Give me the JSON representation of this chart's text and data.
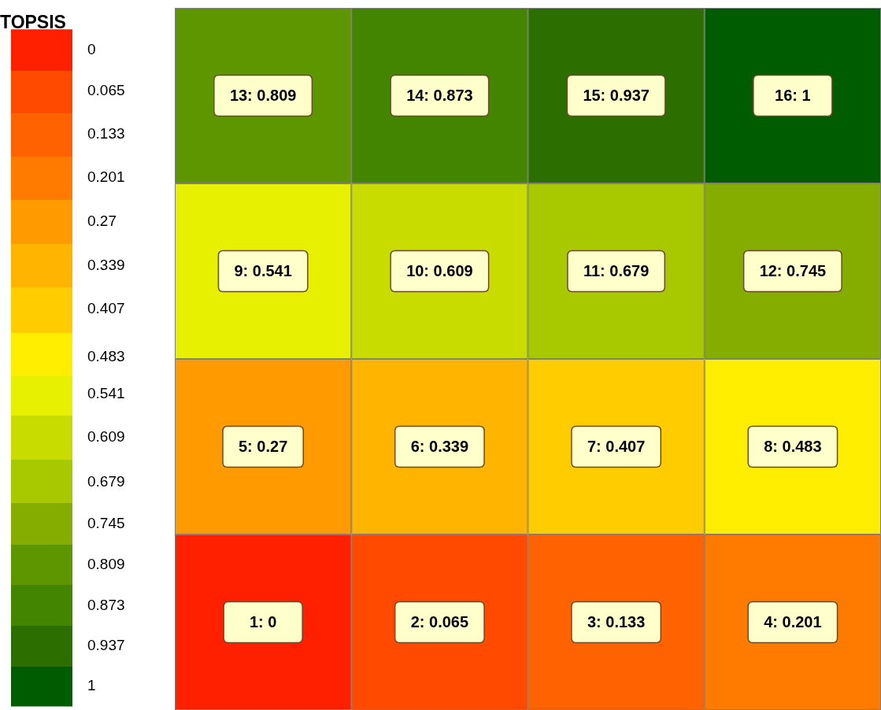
{
  "chart_data": {
    "type": "heatmap",
    "legend_title": "TOPSIS",
    "categories": [
      null,
      null,
      null,
      null
    ],
    "y_categories": [
      null,
      null,
      null,
      null
    ],
    "cells": [
      [
        0.809,
        0.873,
        0.937,
        1
      ],
      [
        0.541,
        0.609,
        0.679,
        0.745
      ],
      [
        0.27,
        0.339,
        0.407,
        0.483
      ],
      [
        0,
        0.065,
        0.133,
        0.201
      ]
    ],
    "cell_labels": [
      [
        "13: 0.809",
        "14: 0.873",
        "15: 0.937",
        "16: 1"
      ],
      [
        "9: 0.541",
        "10: 0.609",
        "11: 0.679",
        "12: 0.745"
      ],
      [
        "5: 0.27",
        "6: 0.339",
        "7: 0.407",
        "8: 0.483"
      ],
      [
        "1: 0",
        "2: 0.065",
        "3: 0.133",
        "4: 0.201"
      ]
    ],
    "clim": [
      0,
      1
    ],
    "cticks": [
      {
        "value": 0,
        "label": "0"
      },
      {
        "value": 0.065,
        "label": "0.065"
      },
      {
        "value": 0.133,
        "label": "0.133"
      },
      {
        "value": 0.201,
        "label": "0.201"
      },
      {
        "value": 0.27,
        "label": "0.27"
      },
      {
        "value": 0.339,
        "label": "0.339"
      },
      {
        "value": 0.407,
        "label": "0.407"
      },
      {
        "value": 0.483,
        "label": "0.483"
      },
      {
        "value": 0.541,
        "label": "0.541"
      },
      {
        "value": 0.609,
        "label": "0.609"
      },
      {
        "value": 0.679,
        "label": "0.679"
      },
      {
        "value": 0.745,
        "label": "0.745"
      },
      {
        "value": 0.809,
        "label": "0.809"
      },
      {
        "value": 0.873,
        "label": "0.873"
      },
      {
        "value": 0.937,
        "label": "0.937"
      },
      {
        "value": 1,
        "label": "1"
      }
    ],
    "colors": [
      "#ff2000",
      "#ff4a00",
      "#ff6200",
      "#ff7b00",
      "#ff9a00",
      "#ffb400",
      "#ffcc00",
      "#ffee00",
      "#e6f000",
      "#c8dc00",
      "#a8c800",
      "#84ad00",
      "#5e9600",
      "#448500",
      "#2d6e00",
      "#005c00"
    ]
  }
}
